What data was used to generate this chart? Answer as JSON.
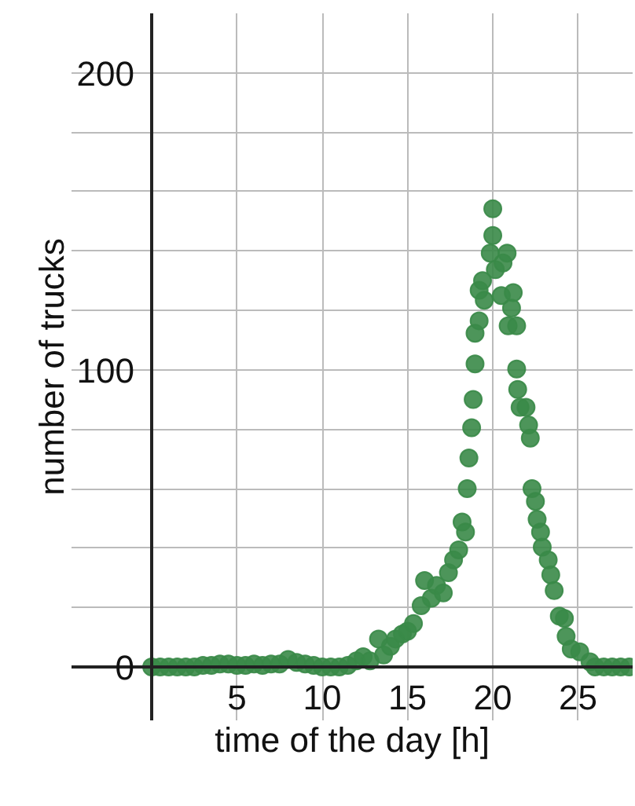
{
  "chart_data": {
    "type": "scatter",
    "xlabel": "time of the day [h]",
    "ylabel": "number of trucks",
    "xlim": [
      -4.7,
      28.2
    ],
    "ylim": [
      -18,
      220
    ],
    "xticks": [
      5,
      10,
      15,
      20,
      25
    ],
    "yticks": [
      0,
      100,
      200
    ],
    "grid": true,
    "marker": "circle",
    "series": [
      {
        "color": "#3a8a48",
        "x": [
          0,
          0.5,
          1,
          1.5,
          2,
          2.5,
          3,
          3.5,
          4,
          4.5,
          5,
          5.5,
          6,
          6.5,
          7,
          7.5,
          8,
          8.5,
          9,
          9.5,
          10,
          10.5,
          11,
          11.5,
          12,
          12.4,
          12.8,
          13.3,
          13.6,
          14,
          14.3,
          14.7,
          15,
          15.35,
          15.8,
          16,
          16.4,
          16.7,
          17.1,
          17.4,
          17.7,
          18,
          18.2,
          18.4,
          18.5,
          18.6,
          18.76,
          18.85,
          18.96,
          18.96,
          19.2,
          19.2,
          19.4,
          19.5,
          19.85,
          20,
          20,
          20.15,
          20.5,
          20.6,
          20.84,
          20.9,
          21.1,
          21.2,
          21.4,
          21.4,
          21.46,
          21.6,
          21.95,
          22.1,
          22.2,
          22.3,
          22.5,
          22.6,
          22.8,
          22.9,
          23.25,
          23.4,
          23.6,
          23.9,
          24.2,
          24.3,
          24.6,
          25.1,
          25.7,
          26,
          26.5,
          27,
          27.5,
          28
        ],
        "values": [
          0,
          0,
          0,
          0,
          0,
          0,
          0.5,
          0.5,
          1,
          1,
          0.5,
          0.5,
          1,
          0.5,
          1,
          1,
          2.5,
          1.5,
          1,
          0.5,
          0,
          0,
          0,
          0.5,
          2,
          3.4,
          2,
          9.4,
          4,
          6.9,
          9.4,
          11.1,
          12,
          14.6,
          20.6,
          29.1,
          23.1,
          27.4,
          24.9,
          31.7,
          36,
          39.4,
          48.8,
          45.4,
          60,
          70.3,
          80.5,
          90,
          102,
          112.3,
          116.5,
          126.8,
          130,
          123.4,
          139.3,
          154.2,
          145.2,
          133.7,
          125,
          136,
          139.3,
          114.8,
          120.8,
          126,
          114.8,
          100.3,
          93.4,
          87.4,
          87.4,
          81.4,
          77,
          60,
          55.7,
          49.7,
          45.4,
          40.3,
          36,
          31,
          25.7,
          17.1,
          16.3,
          10.3,
          6,
          5.1,
          1.7,
          0,
          0,
          0,
          0,
          0
        ]
      }
    ]
  }
}
